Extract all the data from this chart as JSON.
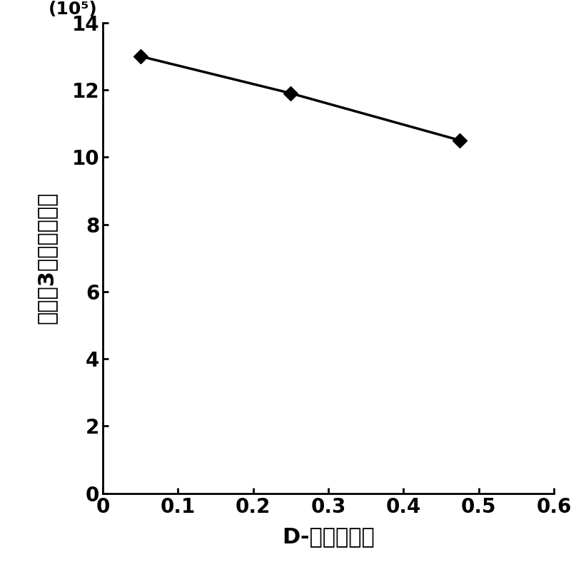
{
  "x": [
    0.05,
    0.25,
    0.475
  ],
  "y": [
    13.0,
    11.9,
    10.5
  ],
  "xlabel": "D-半乳糖浓度",
  "ylabel": "同水平3个活性值之和",
  "ylabel_unit": "(10⁵)",
  "xlim": [
    0,
    0.6
  ],
  "ylim": [
    0,
    14
  ],
  "xticks": [
    0,
    0.1,
    0.2,
    0.3,
    0.4,
    0.5,
    0.6
  ],
  "yticks": [
    0,
    2,
    4,
    6,
    8,
    10,
    12,
    14
  ],
  "line_color": "#000000",
  "marker": "D",
  "marker_size": 10,
  "line_width": 2.5,
  "background_color": "#ffffff",
  "tick_fontsize": 20,
  "label_fontsize": 22,
  "unit_fontsize": 18
}
